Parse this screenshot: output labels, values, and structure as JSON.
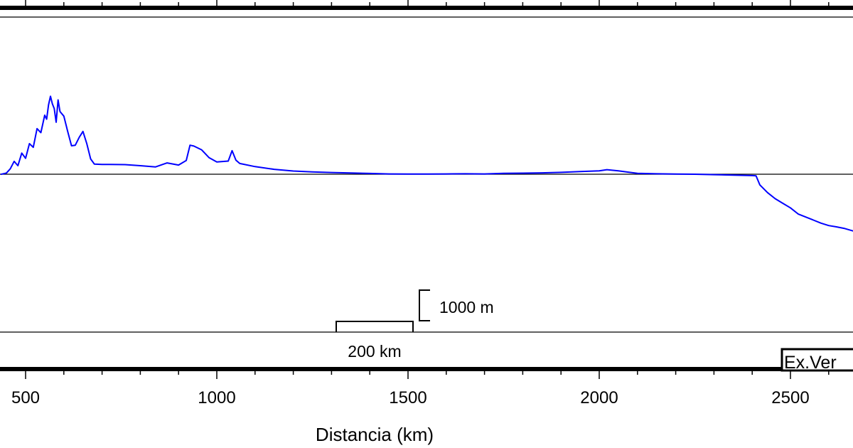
{
  "chart_data": {
    "type": "line",
    "xlabel": "Distancia (km)",
    "xlim": [
      435,
      2665
    ],
    "x_ticks": [
      "500",
      "1000",
      "1500",
      "2000",
      "2500"
    ],
    "y_units": "m",
    "series": [
      {
        "color": "#0000ff",
        "points": [
          [
            435,
            -5
          ],
          [
            450,
            40
          ],
          [
            460,
            180
          ],
          [
            470,
            420
          ],
          [
            480,
            280
          ],
          [
            490,
            690
          ],
          [
            500,
            520
          ],
          [
            510,
            1000
          ],
          [
            520,
            880
          ],
          [
            530,
            1490
          ],
          [
            540,
            1360
          ],
          [
            550,
            1930
          ],
          [
            555,
            1800
          ],
          [
            560,
            2270
          ],
          [
            565,
            2550
          ],
          [
            570,
            2300
          ],
          [
            575,
            2150
          ],
          [
            580,
            1700
          ],
          [
            585,
            2430
          ],
          [
            590,
            2050
          ],
          [
            600,
            1900
          ],
          [
            610,
            1400
          ],
          [
            620,
            930
          ],
          [
            630,
            950
          ],
          [
            640,
            1200
          ],
          [
            650,
            1400
          ],
          [
            660,
            1000
          ],
          [
            670,
            500
          ],
          [
            680,
            330
          ],
          [
            700,
            320
          ],
          [
            720,
            320
          ],
          [
            760,
            315
          ],
          [
            800,
            280
          ],
          [
            840,
            240
          ],
          [
            870,
            370
          ],
          [
            900,
            300
          ],
          [
            920,
            450
          ],
          [
            930,
            950
          ],
          [
            940,
            920
          ],
          [
            960,
            800
          ],
          [
            980,
            540
          ],
          [
            1000,
            400
          ],
          [
            1030,
            430
          ],
          [
            1040,
            770
          ],
          [
            1050,
            460
          ],
          [
            1060,
            350
          ],
          [
            1100,
            250
          ],
          [
            1150,
            160
          ],
          [
            1200,
            105
          ],
          [
            1250,
            75
          ],
          [
            1300,
            55
          ],
          [
            1350,
            40
          ],
          [
            1400,
            25
          ],
          [
            1450,
            10
          ],
          [
            1500,
            5
          ],
          [
            1550,
            5
          ],
          [
            1600,
            10
          ],
          [
            1650,
            15
          ],
          [
            1700,
            10
          ],
          [
            1750,
            30
          ],
          [
            1800,
            35
          ],
          [
            1850,
            45
          ],
          [
            1900,
            60
          ],
          [
            1950,
            85
          ],
          [
            2000,
            110
          ],
          [
            2020,
            150
          ],
          [
            2050,
            110
          ],
          [
            2080,
            60
          ],
          [
            2100,
            30
          ],
          [
            2150,
            15
          ],
          [
            2200,
            5
          ],
          [
            2250,
            0
          ],
          [
            2300,
            -15
          ],
          [
            2350,
            -30
          ],
          [
            2400,
            -45
          ],
          [
            2410,
            -50
          ],
          [
            2420,
            -350
          ],
          [
            2440,
            -600
          ],
          [
            2460,
            -800
          ],
          [
            2480,
            -950
          ],
          [
            2500,
            -1100
          ],
          [
            2520,
            -1300
          ],
          [
            2540,
            -1400
          ],
          [
            2560,
            -1500
          ],
          [
            2580,
            -1600
          ],
          [
            2600,
            -1680
          ],
          [
            2620,
            -1720
          ],
          [
            2640,
            -1770
          ],
          [
            2665,
            -1860
          ]
        ]
      }
    ],
    "scale_bars": {
      "horizontal_label": "200 km",
      "vertical_label": "1000 m"
    },
    "badge_label": "Ex.Ver"
  }
}
